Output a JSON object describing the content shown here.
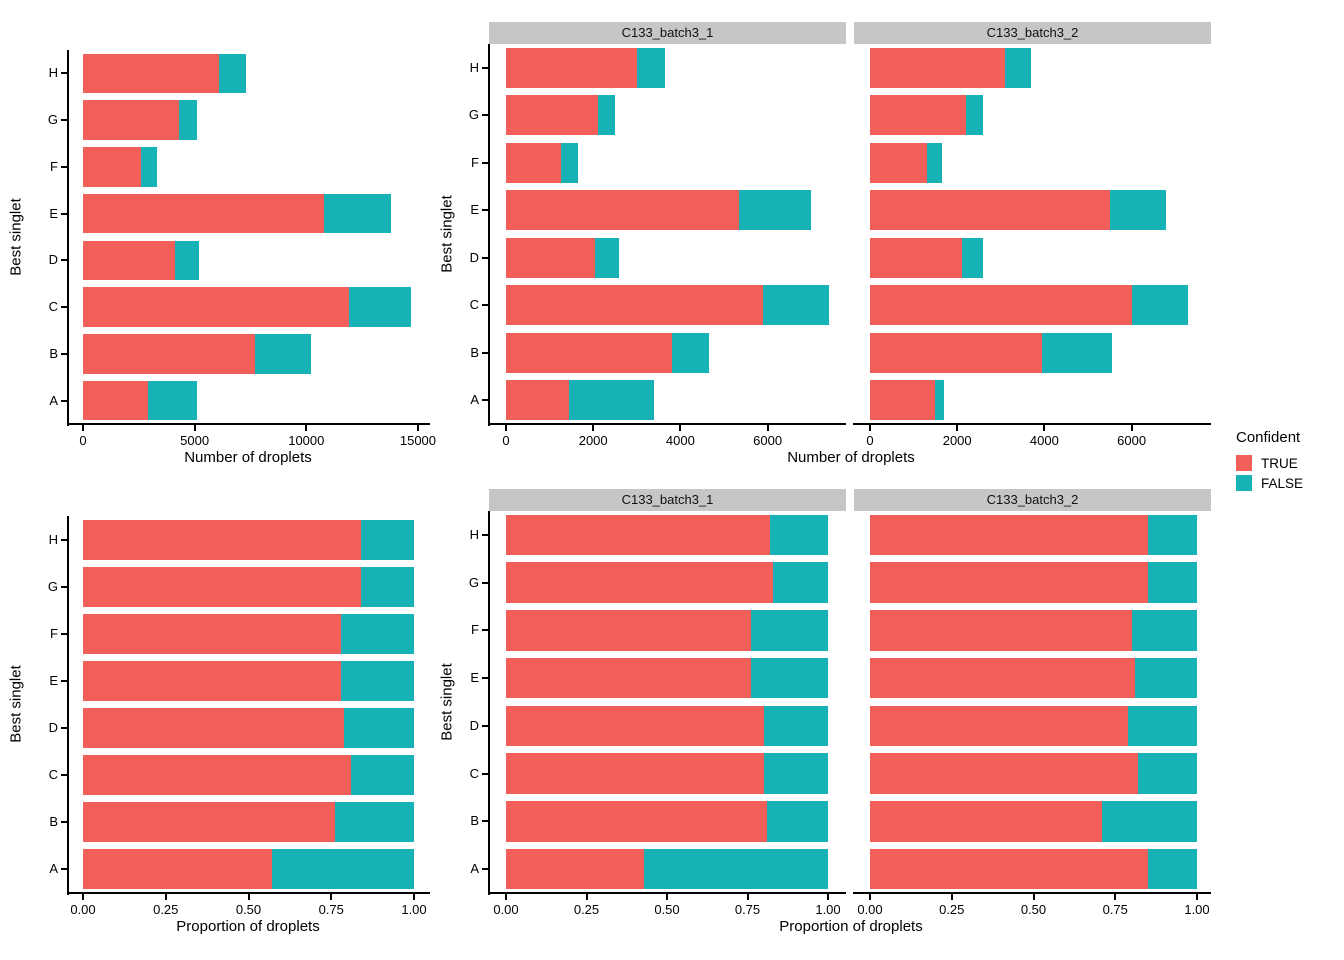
{
  "figure": {
    "background": "#FFFFFF",
    "strip_color": "#C6C6C6",
    "axis_color": "#000000"
  },
  "legend": {
    "title": "Confident",
    "position": "right-middle",
    "entries": [
      {
        "label": "TRUE",
        "color": "#F25E5A"
      },
      {
        "label": "FALSE",
        "color": "#17B2B6"
      }
    ]
  },
  "chart_data": [
    {
      "id": "counts",
      "type": "bar",
      "orientation": "horizontal",
      "stacked": true,
      "xlabel": "Number of droplets",
      "ylabel": "Best singlet",
      "legend_title": "Confident",
      "categories": [
        "A",
        "B",
        "C",
        "D",
        "E",
        "F",
        "G",
        "H"
      ],
      "category_order": "A at bottom, H at top",
      "grid": false,
      "panels": [
        {
          "facet": "",
          "xticks": {
            "values": [
              0,
              5000,
              10000,
              15000
            ],
            "labels": [
              "0",
              "5000",
              "10000",
              "15000"
            ]
          },
          "xlim": [
            0,
            15550
          ],
          "series": [
            {
              "name": "TRUE",
              "values": [
                2900,
                7700,
                11900,
                4100,
                10800,
                2600,
                4300,
                6100
              ]
            },
            {
              "name": "FALSE",
              "values": [
                2200,
                2500,
                2800,
                1100,
                3000,
                700,
                800,
                1200
              ]
            }
          ]
        },
        {
          "facet": "C133_batch3_1",
          "xticks": {
            "values": [
              0,
              2000,
              4000,
              6000
            ],
            "labels": [
              "0",
              "2000",
              "4000",
              "6000"
            ]
          },
          "xlim": [
            0,
            7800
          ],
          "series": [
            {
              "name": "TRUE",
              "values": [
                1450,
                3800,
                5900,
                2050,
                5350,
                1250,
                2100,
                3000
              ]
            },
            {
              "name": "FALSE",
              "values": [
                1950,
                850,
                1500,
                550,
                1650,
                400,
                400,
                650
              ]
            }
          ]
        },
        {
          "facet": "C133_batch3_2",
          "xticks": {
            "values": [
              0,
              2000,
              4000,
              6000
            ],
            "labels": [
              "0",
              "2000",
              "4000",
              "6000"
            ]
          },
          "xlim": [
            0,
            7800
          ],
          "series": [
            {
              "name": "TRUE",
              "values": [
                1500,
                3950,
                6000,
                2100,
                5500,
                1300,
                2200,
                3100
              ]
            },
            {
              "name": "FALSE",
              "values": [
                200,
                1600,
                1300,
                500,
                1300,
                350,
                400,
                600
              ]
            }
          ]
        }
      ]
    },
    {
      "id": "proportions",
      "type": "bar",
      "orientation": "horizontal",
      "stacked": true,
      "xlabel": "Proportion of droplets",
      "ylabel": "Best singlet",
      "legend_title": "Confident",
      "categories": [
        "A",
        "B",
        "C",
        "D",
        "E",
        "F",
        "G",
        "H"
      ],
      "category_order": "A at bottom, H at top",
      "grid": false,
      "panels": [
        {
          "facet": "",
          "xticks": {
            "values": [
              0,
              0.25,
              0.5,
              0.75,
              1
            ],
            "labels": [
              "0.00",
              "0.25",
              "0.50",
              "0.75",
              "1.00"
            ]
          },
          "xlim": [
            0,
            1
          ],
          "series": [
            {
              "name": "TRUE",
              "values": [
                0.57,
                0.76,
                0.81,
                0.79,
                0.78,
                0.78,
                0.84,
                0.84
              ]
            },
            {
              "name": "FALSE",
              "values": [
                0.43,
                0.24,
                0.19,
                0.21,
                0.22,
                0.22,
                0.16,
                0.16
              ]
            }
          ]
        },
        {
          "facet": "C133_batch3_1",
          "xticks": {
            "values": [
              0,
              0.25,
              0.5,
              0.75,
              1
            ],
            "labels": [
              "0.00",
              "0.25",
              "0.50",
              "0.75",
              "1.00"
            ]
          },
          "xlim": [
            0,
            1
          ],
          "series": [
            {
              "name": "TRUE",
              "values": [
                0.43,
                0.81,
                0.8,
                0.8,
                0.76,
                0.76,
                0.83,
                0.82
              ]
            },
            {
              "name": "FALSE",
              "values": [
                0.57,
                0.19,
                0.2,
                0.2,
                0.24,
                0.24,
                0.17,
                0.18
              ]
            }
          ]
        },
        {
          "facet": "C133_batch3_2",
          "xticks": {
            "values": [
              0,
              0.25,
              0.5,
              0.75,
              1
            ],
            "labels": [
              "0.00",
              "0.25",
              "0.50",
              "0.75",
              "1.00"
            ]
          },
          "xlim": [
            0,
            1
          ],
          "series": [
            {
              "name": "TRUE",
              "values": [
                0.85,
                0.71,
                0.82,
                0.79,
                0.81,
                0.8,
                0.85,
                0.85
              ]
            },
            {
              "name": "FALSE",
              "values": [
                0.15,
                0.29,
                0.18,
                0.21,
                0.19,
                0.2,
                0.15,
                0.15
              ]
            }
          ]
        }
      ]
    }
  ]
}
